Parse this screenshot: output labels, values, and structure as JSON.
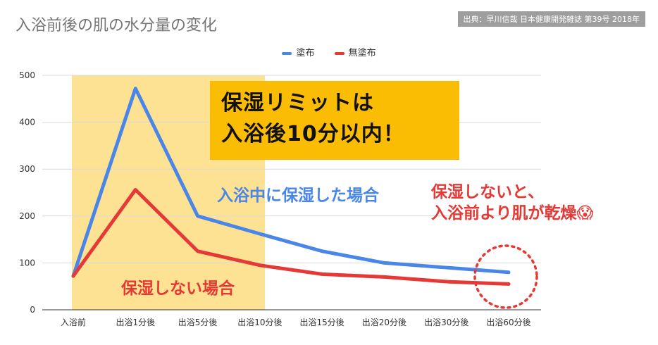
{
  "chart_data": {
    "type": "line",
    "title": "入浴前後の肌の水分量の変化",
    "source": "出典：早川信哉 日本健康開発雑誌 第39号 2018年",
    "categories": [
      "入浴前",
      "出浴1分後",
      "出浴5分後",
      "出浴10分後",
      "出浴15分後",
      "出浴20分後",
      "出浴30分後",
      "出浴60分後"
    ],
    "series": [
      {
        "name": "塗布",
        "color": "#4a86e8",
        "values": [
          72,
          472,
          200,
          162,
          125,
          100,
          90,
          80
        ]
      },
      {
        "name": "無塗布",
        "color": "#e53935",
        "values": [
          72,
          256,
          125,
          95,
          76,
          70,
          60,
          55
        ]
      }
    ],
    "ylim": [
      0,
      500
    ],
    "yticks": [
      0,
      100,
      200,
      300,
      400,
      500
    ],
    "grid": true,
    "legend_position": "top-center",
    "highlight": {
      "from_category": 0,
      "to_category": 3,
      "color": "#fde293"
    },
    "annotations": {
      "main_callout": [
        "保湿リミットは",
        "入浴後10分以内！"
      ],
      "coated_label": "入浴中に保湿した場合",
      "uncoated_label": "保湿しない場合",
      "dry_warning": [
        "保湿しないと、",
        "入浴前より肌が乾燥😱"
      ]
    }
  }
}
